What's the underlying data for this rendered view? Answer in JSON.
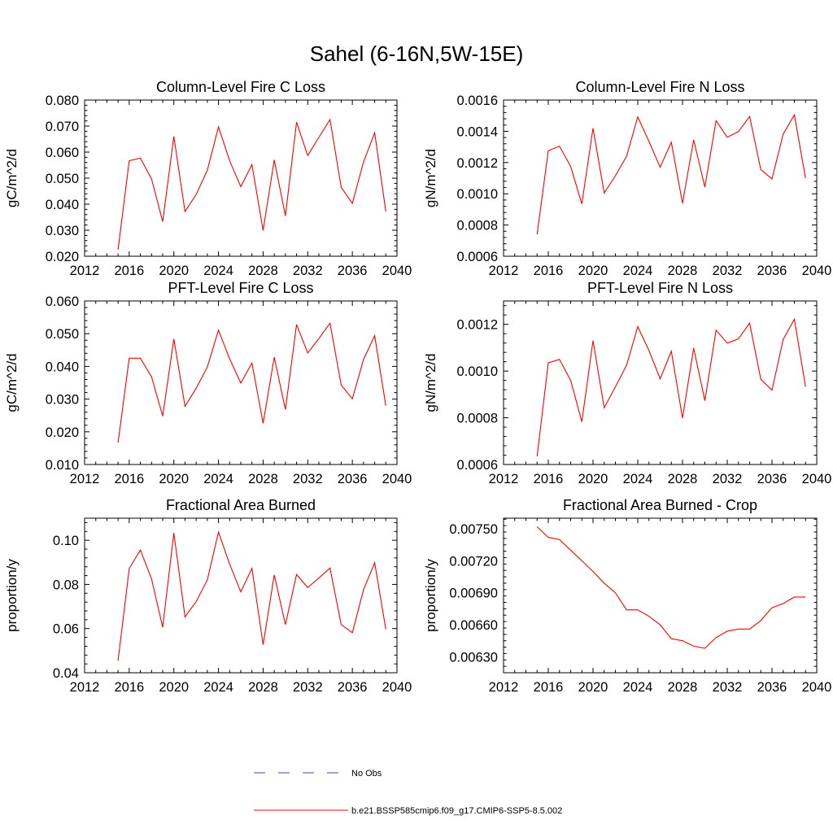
{
  "figure": {
    "title": "Sahel (6-16N,5W-15E)"
  },
  "chart_data": [
    {
      "type": "line",
      "title": "Column-Level Fire C Loss",
      "xlabel": "",
      "ylabel": "gC/m^2/d",
      "xlim": [
        2012,
        2040
      ],
      "ylim": [
        0.02,
        0.08
      ],
      "xticks": [
        2012,
        2016,
        2020,
        2024,
        2028,
        2032,
        2036,
        2040
      ],
      "xtick_labels": [
        "2012",
        "2016",
        "2020",
        "2024",
        "2028",
        "2032",
        "2036",
        "2040"
      ],
      "yticks": [
        0.02,
        0.03,
        0.04,
        0.05,
        0.06,
        0.07,
        0.08
      ],
      "ytick_labels": [
        "0.020",
        "0.030",
        "0.040",
        "0.050",
        "0.060",
        "0.070",
        "0.080"
      ],
      "grid": false,
      "series": [
        {
          "name": "b.e21.BSSP585cmip6.f09_g17.CMIP6-SSP5-8.5.002",
          "color": "#ff0000",
          "x": [
            2015,
            2016,
            2017,
            2018,
            2019,
            2020,
            2021,
            2022,
            2023,
            2024,
            2025,
            2026,
            2027,
            2028,
            2029,
            2030,
            2031,
            2032,
            2033,
            2034,
            2035,
            2036,
            2037,
            2038,
            2039
          ],
          "y": [
            0.0225,
            0.0567,
            0.0577,
            0.0497,
            0.0333,
            0.066,
            0.0372,
            0.0437,
            0.053,
            0.0697,
            0.0567,
            0.0467,
            0.0552,
            0.0299,
            0.057,
            0.0355,
            0.0715,
            0.0587,
            0.0657,
            0.0725,
            0.0465,
            0.0403,
            0.0562,
            0.0674,
            0.0372
          ]
        }
      ]
    },
    {
      "type": "line",
      "title": "Column-Level Fire N Loss",
      "xlabel": "",
      "ylabel": "gN/m^2/d",
      "xlim": [
        2012,
        2040
      ],
      "ylim": [
        0.0006,
        0.0016
      ],
      "xticks": [
        2012,
        2016,
        2020,
        2024,
        2028,
        2032,
        2036,
        2040
      ],
      "xtick_labels": [
        "2012",
        "2016",
        "2020",
        "2024",
        "2028",
        "2032",
        "2036",
        "2040"
      ],
      "yticks": [
        0.0006,
        0.0008,
        0.001,
        0.0012,
        0.0014,
        0.0016
      ],
      "ytick_labels": [
        "0.0006",
        "0.0008",
        "0.0010",
        "0.0012",
        "0.0014",
        "0.0016"
      ],
      "grid": false,
      "series": [
        {
          "name": "b.e21.BSSP585cmip6.f09_g17.CMIP6-SSP5-8.5.002",
          "color": "#ff0000",
          "x": [
            2015,
            2016,
            2017,
            2018,
            2019,
            2020,
            2021,
            2022,
            2023,
            2024,
            2025,
            2026,
            2027,
            2028,
            2029,
            2030,
            2031,
            2032,
            2033,
            2034,
            2035,
            2036,
            2037,
            2038,
            2039
          ],
          "y": [
            0.00074,
            0.001275,
            0.001305,
            0.001175,
            0.000935,
            0.00142,
            0.001005,
            0.001115,
            0.00124,
            0.001492,
            0.001335,
            0.00117,
            0.00133,
            0.00094,
            0.001345,
            0.001043,
            0.001468,
            0.001362,
            0.001398,
            0.001495,
            0.001155,
            0.001095,
            0.001382,
            0.001505,
            0.0011
          ]
        }
      ]
    },
    {
      "type": "line",
      "title": "PFT-Level Fire C Loss",
      "xlabel": "",
      "ylabel": "gC/m^2/d",
      "xlim": [
        2012,
        2040
      ],
      "ylim": [
        0.01,
        0.06
      ],
      "xticks": [
        2012,
        2016,
        2020,
        2024,
        2028,
        2032,
        2036,
        2040
      ],
      "xtick_labels": [
        "2012",
        "2016",
        "2020",
        "2024",
        "2028",
        "2032",
        "2036",
        "2040"
      ],
      "yticks": [
        0.01,
        0.02,
        0.03,
        0.04,
        0.05,
        0.06
      ],
      "ytick_labels": [
        "0.010",
        "0.020",
        "0.030",
        "0.040",
        "0.050",
        "0.060"
      ],
      "grid": false,
      "series": [
        {
          "name": "b.e21.BSSP585cmip6.f09_g17.CMIP6-SSP5-8.5.002",
          "color": "#ff0000",
          "x": [
            2015,
            2016,
            2017,
            2018,
            2019,
            2020,
            2021,
            2022,
            2023,
            2024,
            2025,
            2026,
            2027,
            2028,
            2029,
            2030,
            2031,
            2032,
            2033,
            2034,
            2035,
            2036,
            2037,
            2038,
            2039
          ],
          "y": [
            0.0167,
            0.0425,
            0.0425,
            0.0368,
            0.0248,
            0.0484,
            0.0278,
            0.0333,
            0.0398,
            0.0511,
            0.0423,
            0.0349,
            0.041,
            0.0226,
            0.0428,
            0.0268,
            0.0528,
            0.0441,
            0.0485,
            0.0532,
            0.0343,
            0.0301,
            0.0421,
            0.0494,
            0.028
          ]
        }
      ]
    },
    {
      "type": "line",
      "title": "PFT-Level Fire N Loss",
      "xlabel": "",
      "ylabel": "gN/m^2/d",
      "xlim": [
        2012,
        2040
      ],
      "ylim": [
        0.0006,
        0.0013
      ],
      "xticks": [
        2012,
        2016,
        2020,
        2024,
        2028,
        2032,
        2036,
        2040
      ],
      "xtick_labels": [
        "2012",
        "2016",
        "2020",
        "2024",
        "2028",
        "2032",
        "2036",
        "2040"
      ],
      "yticks": [
        0.0006,
        0.0008,
        0.001,
        0.0012
      ],
      "ytick_labels": [
        "0.0006",
        "0.0008",
        "0.0010",
        "0.0012"
      ],
      "grid": false,
      "series": [
        {
          "name": "b.e21.BSSP585cmip6.f09_g17.CMIP6-SSP5-8.5.002",
          "color": "#ff0000",
          "x": [
            2015,
            2016,
            2017,
            2018,
            2019,
            2020,
            2021,
            2022,
            2023,
            2024,
            2025,
            2026,
            2027,
            2028,
            2029,
            2030,
            2031,
            2032,
            2033,
            2034,
            2035,
            2036,
            2037,
            2038,
            2039
          ],
          "y": [
            0.000635,
            0.001035,
            0.00105,
            0.00096,
            0.000783,
            0.00113,
            0.000843,
            0.000932,
            0.001025,
            0.00119,
            0.001088,
            0.000967,
            0.001085,
            0.000799,
            0.001098,
            0.000873,
            0.001175,
            0.00112,
            0.001138,
            0.001205,
            0.000965,
            0.000918,
            0.001135,
            0.001222,
            0.000933
          ]
        }
      ]
    },
    {
      "type": "line",
      "title": "Fractional Area Burned",
      "xlabel": "",
      "ylabel": "proportion/y",
      "xlim": [
        2012,
        2040
      ],
      "ylim": [
        0.04,
        0.11
      ],
      "xticks": [
        2012,
        2016,
        2020,
        2024,
        2028,
        2032,
        2036,
        2040
      ],
      "xtick_labels": [
        "2012",
        "2016",
        "2020",
        "2024",
        "2028",
        "2032",
        "2036",
        "2040"
      ],
      "yticks": [
        0.04,
        0.06,
        0.08,
        0.1
      ],
      "ytick_labels": [
        "0.04",
        "0.06",
        "0.08",
        "0.10"
      ],
      "grid": false,
      "series": [
        {
          "name": "b.e21.BSSP585cmip6.f09_g17.CMIP6-SSP5-8.5.002",
          "color": "#ff0000",
          "x": [
            2015,
            2016,
            2017,
            2018,
            2019,
            2020,
            2021,
            2022,
            2023,
            2024,
            2025,
            2026,
            2027,
            2028,
            2029,
            2030,
            2031,
            2032,
            2033,
            2034,
            2035,
            2036,
            2037,
            2038,
            2039
          ],
          "y": [
            0.0455,
            0.0872,
            0.0956,
            0.0825,
            0.0606,
            0.1033,
            0.0653,
            0.0722,
            0.082,
            0.1037,
            0.0892,
            0.0766,
            0.0873,
            0.0527,
            0.0843,
            0.0618,
            0.0845,
            0.0786,
            0.0829,
            0.0874,
            0.0618,
            0.0581,
            0.0776,
            0.0898,
            0.0597
          ]
        }
      ]
    },
    {
      "type": "line",
      "title": "Fractional Area Burned - Crop",
      "xlabel": "",
      "ylabel": "proportion/y",
      "xlim": [
        2012,
        2040
      ],
      "ylim": [
        0.00615,
        0.0076
      ],
      "xticks": [
        2012,
        2016,
        2020,
        2024,
        2028,
        2032,
        2036,
        2040
      ],
      "xtick_labels": [
        "2012",
        "2016",
        "2020",
        "2024",
        "2028",
        "2032",
        "2036",
        "2040"
      ],
      "yticks": [
        0.0063,
        0.0066,
        0.0069,
        0.0072,
        0.0075
      ],
      "ytick_labels": [
        "0.00630",
        "0.00660",
        "0.00690",
        "0.00720",
        "0.00750"
      ],
      "grid": false,
      "series": [
        {
          "name": "b.e21.BSSP585cmip6.f09_g17.CMIP6-SSP5-8.5.002",
          "color": "#ff0000",
          "x": [
            2015,
            2016,
            2017,
            2018,
            2019,
            2020,
            2021,
            2022,
            2023,
            2024,
            2025,
            2026,
            2027,
            2028,
            2029,
            2030,
            2031,
            2032,
            2033,
            2034,
            2035,
            2036,
            2037,
            2038,
            2039
          ],
          "y": [
            0.00752,
            0.00742,
            0.0074,
            0.0073,
            0.0072,
            0.0071,
            0.00699,
            0.0069,
            0.00674,
            0.00674,
            0.00668,
            0.0066,
            0.00647,
            0.00645,
            0.0064,
            0.00638,
            0.00648,
            0.00654,
            0.00656,
            0.00656,
            0.00664,
            0.00676,
            0.0068,
            0.00686,
            0.00686
          ]
        }
      ]
    }
  ],
  "legend": {
    "placement": "bottom-center",
    "entries": [
      {
        "label": "No Obs",
        "color": "#4a4aa8",
        "style": "dashed"
      },
      {
        "label": "b.e21.BSSP585cmip6.f09_g17.CMIP6-SSP5-8.5.002",
        "color": "#ff0000",
        "style": "solid"
      }
    ]
  }
}
